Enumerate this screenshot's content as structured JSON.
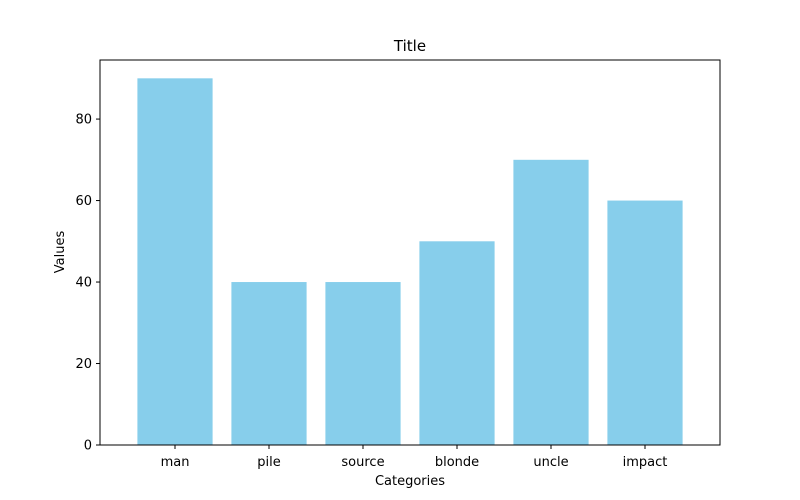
{
  "chart_data": {
    "type": "bar",
    "title": "Title",
    "xlabel": "Categories",
    "ylabel": "Values",
    "categories": [
      "man",
      "pile",
      "source",
      "blonde",
      "uncle",
      "impact"
    ],
    "values": [
      90,
      40,
      40,
      50,
      70,
      60
    ],
    "ylim": [
      0,
      94.5
    ],
    "yticks": [
      0,
      20,
      40,
      60,
      80
    ],
    "bar_color": "#87ceeb",
    "grid": false,
    "legend": "none"
  }
}
